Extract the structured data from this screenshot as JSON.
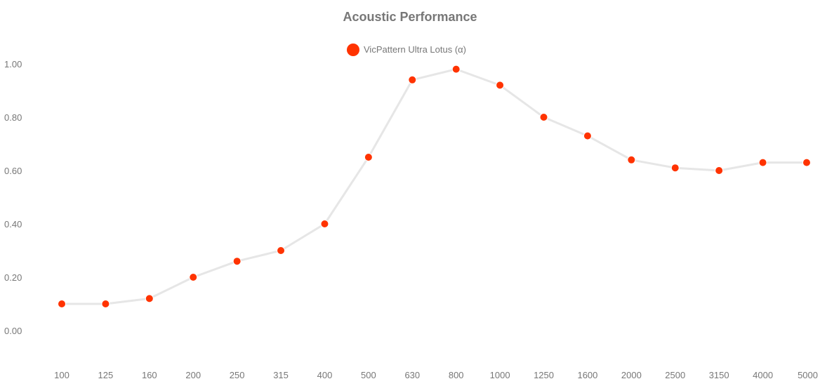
{
  "colors": {
    "series": "#ff3300",
    "line": "#e6e6e6",
    "text": "#777777"
  },
  "chart_data": {
    "type": "line",
    "title": "Acoustic Performance",
    "xlabel": "",
    "ylabel": "",
    "categories": [
      "100",
      "125",
      "160",
      "200",
      "250",
      "315",
      "400",
      "500",
      "630",
      "800",
      "1000",
      "1250",
      "1600",
      "2000",
      "2500",
      "3150",
      "4000",
      "5000"
    ],
    "series": [
      {
        "name": "VicPattern Ultra Lotus (α)",
        "values": [
          0.1,
          0.1,
          0.12,
          0.2,
          0.26,
          0.3,
          0.4,
          0.65,
          0.94,
          0.98,
          0.92,
          0.8,
          0.73,
          0.64,
          0.61,
          0.6,
          0.63,
          0.63
        ]
      }
    ],
    "ylim": [
      0.0,
      1.0
    ],
    "yticks": [
      "0.00",
      "0.20",
      "0.40",
      "0.60",
      "0.80",
      "1.00"
    ],
    "grid": false,
    "legend_position": "top-center"
  }
}
